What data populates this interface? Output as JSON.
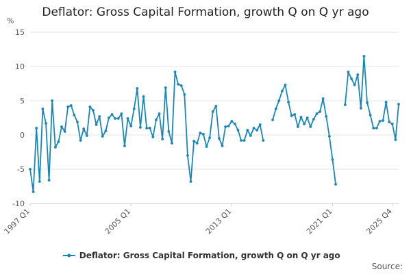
{
  "chart_data": {
    "type": "line",
    "title": "Deflator: Gross Capital Formation, growth Q on Q yr ago",
    "ylabel": "%",
    "xlabel": "",
    "ylim": [
      -10,
      15
    ],
    "yticks": [
      15,
      10,
      5,
      0,
      -5,
      -10
    ],
    "xtick_labels": [
      "1997 Q1",
      "2005 Q1",
      "2013 Q1",
      "2021 Q1",
      "2025 Q4"
    ],
    "x_start": "1997 Q1",
    "x_end": "2025 Q4",
    "grid": true,
    "legend_position": "bottom",
    "series": [
      {
        "name": "Deflator: Gross Capital Formation, growth Q on Q yr ago",
        "color": "#1a86b8",
        "values": [
          -5.0,
          -8.3,
          1.0,
          -6.8,
          3.8,
          1.7,
          -6.6,
          5.0,
          -1.8,
          -1.0,
          1.2,
          0.5,
          4.1,
          4.3,
          2.9,
          1.9,
          -0.8,
          0.9,
          -0.1,
          4.1,
          3.6,
          1.5,
          2.7,
          -0.2,
          0.6,
          2.5,
          3.0,
          2.4,
          2.4,
          3.1,
          -1.6,
          2.4,
          1.3,
          3.8,
          6.8,
          1.1,
          5.6,
          1.0,
          1.0,
          -0.3,
          2.2,
          3.1,
          -0.6,
          6.9,
          0.5,
          -1.2,
          9.2,
          7.4,
          7.2,
          5.9,
          -3.0,
          -6.8,
          -0.9,
          -1.2,
          0.3,
          0.1,
          -1.7,
          -0.4,
          3.4,
          4.2,
          -0.5,
          -1.6,
          1.2,
          1.3,
          2.0,
          1.6,
          0.7,
          -0.8,
          -0.8,
          0.7,
          -0.1,
          1.0,
          0.7,
          1.5,
          -0.8,
          null,
          null,
          2.2,
          3.8,
          5.0,
          6.4,
          7.3,
          4.8,
          2.8,
          3.0,
          1.2,
          2.6,
          1.6,
          2.5,
          1.2,
          2.3,
          3.1,
          3.4,
          5.3,
          2.7,
          -0.2,
          -3.6,
          -7.2,
          null,
          null,
          4.4,
          9.2,
          8.2,
          7.3,
          8.8,
          3.9,
          11.5,
          4.7,
          2.9,
          1.0,
          1.0,
          2.0,
          2.1,
          4.8,
          1.9,
          1.6,
          -0.7,
          4.5
        ]
      }
    ]
  },
  "source_label": "Source:"
}
